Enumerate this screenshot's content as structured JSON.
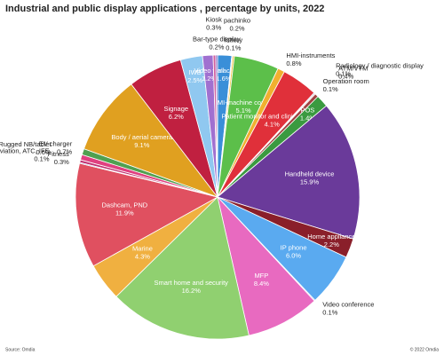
{
  "chart_data": {
    "type": "pie",
    "title": "Industrial and public display applications , percentage by units, 2022",
    "source": "Source: Omdia",
    "copyright": "© 2022 Omdia",
    "categories": [
      "slot machine",
      "lottery",
      "pachinko",
      "HMI-machine control",
      "HMI-instruments",
      "Patient monitor and clinical review",
      "Radiology / diagnostic display",
      "Operation room",
      "ATM/VTM",
      "POS",
      "Handheld device",
      "Home appliance",
      "IP phone",
      "Video conference",
      "MFP",
      "Smart home and security",
      "Marine",
      "Dashcam, PND",
      "Aviation, ATC, IFE",
      "Fitness",
      "Rugged NB/tablet",
      "EV charger",
      "Body / aerial camera",
      "Signage",
      "IWB",
      "Video wall",
      "Kiosk",
      "Bar-type display"
    ],
    "values": [
      1.6,
      0.1,
      0.2,
      5.1,
      0.8,
      4.1,
      0.1,
      0.1,
      0.4,
      1.4,
      15.9,
      2.2,
      6.0,
      0.1,
      8.4,
      16.2,
      4.3,
      11.9,
      0.1,
      0.3,
      0.6,
      0.7,
      9.1,
      6.2,
      2.5,
      1.2,
      0.3,
      0.2
    ],
    "value_labels": [
      "1.6%",
      "0.1%",
      "0.2%",
      "5.1%",
      "0.8%",
      "4.1%",
      "0.1%",
      "0.1%",
      "0.4%",
      "1.4%",
      "15.9%",
      "2.2%",
      "6.0%",
      "0.1%",
      "8.4%",
      "16.2%",
      "4.3%",
      "11.9%",
      "0.1%",
      "0.3%",
      "0.6%",
      "0.7%",
      "9.1%",
      "6.2%",
      "2.5%",
      "1.2%",
      "0.3%",
      "0.2%"
    ],
    "colors": [
      "#3a8fd8",
      "#7fbfff",
      "#f0c040",
      "#5cbf4a",
      "#f0b030",
      "#e0303a",
      "#4070c0",
      "#c03030",
      "#a04040",
      "#3a9a40",
      "#6a3a9a",
      "#8a1f2a",
      "#5aaaf0",
      "#6080d0",
      "#e86ac0",
      "#90d070",
      "#f0b040",
      "#e05060",
      "#4060c0",
      "#c03070",
      "#e04080",
      "#50a050",
      "#e0a020",
      "#c02040",
      "#90c8f0",
      "#a070d0",
      "#d060a0",
      "#8060c0"
    ]
  }
}
